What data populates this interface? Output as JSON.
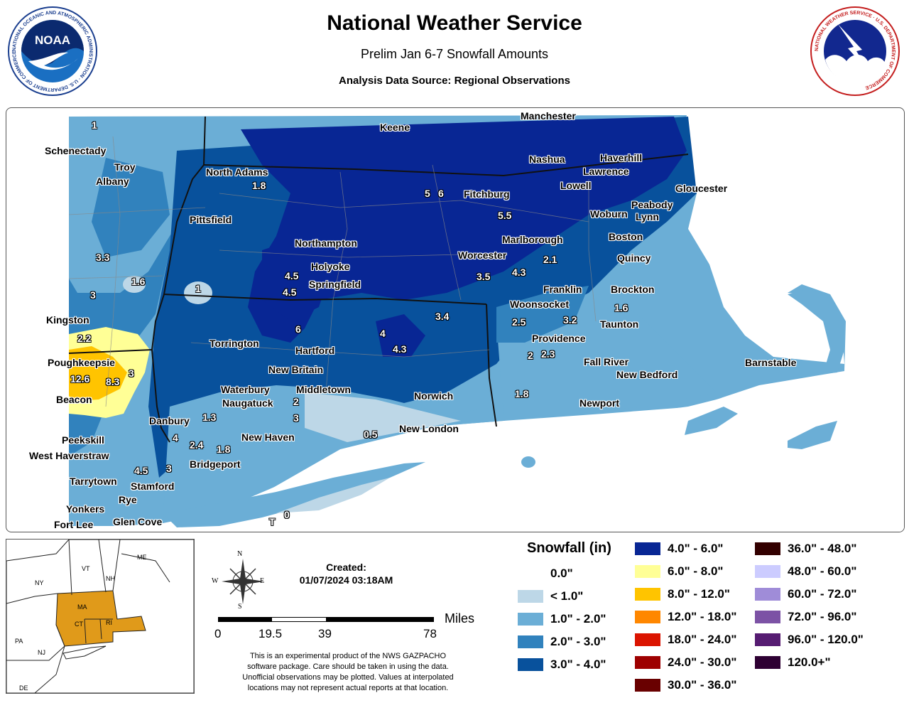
{
  "header": {
    "title": "National Weather Service",
    "subtitle": "Prelim Jan 6-7 Snowfall Amounts",
    "source": "Analysis Data Source: Regional Observations"
  },
  "logos": {
    "noaa": {
      "text": "NOAA",
      "ring_text": "NATIONAL OCEANIC AND ATMOSPHERIC ADMINISTRATION · U.S. DEPARTMENT OF COMMERCE"
    },
    "nws": {
      "ring_text": "NATIONAL WEATHER SERVICE · U.S. DEPARTMENT OF COMMERCE"
    }
  },
  "map": {
    "cities": [
      {
        "name": "Schenectady"
      },
      {
        "name": "Troy"
      },
      {
        "name": "Albany"
      },
      {
        "name": "North Adams"
      },
      {
        "name": "Pittsfield"
      },
      {
        "name": "Keene"
      },
      {
        "name": "Manchester"
      },
      {
        "name": "Nashua"
      },
      {
        "name": "Haverhill"
      },
      {
        "name": "Lawrence"
      },
      {
        "name": "Lowell"
      },
      {
        "name": "Gloucester"
      },
      {
        "name": "Fitchburg"
      },
      {
        "name": "Peabody"
      },
      {
        "name": "Woburn"
      },
      {
        "name": "Lynn"
      },
      {
        "name": "Marlborough"
      },
      {
        "name": "Boston"
      },
      {
        "name": "Quincy"
      },
      {
        "name": "Northampton"
      },
      {
        "name": "Holyoke"
      },
      {
        "name": "Springfield"
      },
      {
        "name": "Worcester"
      },
      {
        "name": "Franklin"
      },
      {
        "name": "Brockton"
      },
      {
        "name": "Woonsocket"
      },
      {
        "name": "Taunton"
      },
      {
        "name": "Kingston"
      },
      {
        "name": "Providence"
      },
      {
        "name": "Torrington"
      },
      {
        "name": "Hartford"
      },
      {
        "name": "Poughkeepsie"
      },
      {
        "name": "New Britain"
      },
      {
        "name": "Fall River"
      },
      {
        "name": "New Bedford"
      },
      {
        "name": "Barnstable"
      },
      {
        "name": "Waterbury"
      },
      {
        "name": "Middletown"
      },
      {
        "name": "Naugatuck"
      },
      {
        "name": "Beacon"
      },
      {
        "name": "Norwich"
      },
      {
        "name": "Newport"
      },
      {
        "name": "Danbury"
      },
      {
        "name": "New London"
      },
      {
        "name": "New Haven"
      },
      {
        "name": "Peekskill"
      },
      {
        "name": "West Haverstraw"
      },
      {
        "name": "Bridgeport"
      },
      {
        "name": "Tarrytown"
      },
      {
        "name": "Stamford"
      },
      {
        "name": "Rye"
      },
      {
        "name": "Yonkers"
      },
      {
        "name": "Fort Lee"
      },
      {
        "name": "Glen Cove"
      }
    ],
    "observations": [
      {
        "value": "1"
      },
      {
        "value": "1.8"
      },
      {
        "value": "5"
      },
      {
        "value": "6"
      },
      {
        "value": "5.5"
      },
      {
        "value": "3.3"
      },
      {
        "value": "1.6"
      },
      {
        "value": "3"
      },
      {
        "value": "1"
      },
      {
        "value": "4.5"
      },
      {
        "value": "4.5"
      },
      {
        "value": "2.1"
      },
      {
        "value": "3.5"
      },
      {
        "value": "4.3"
      },
      {
        "value": "3.4"
      },
      {
        "value": "1.6"
      },
      {
        "value": "3.2"
      },
      {
        "value": "2.5"
      },
      {
        "value": "2.2"
      },
      {
        "value": "6"
      },
      {
        "value": "4"
      },
      {
        "value": "4.3"
      },
      {
        "value": "2"
      },
      {
        "value": "2.3"
      },
      {
        "value": "12.6"
      },
      {
        "value": "8.3"
      },
      {
        "value": "3"
      },
      {
        "value": "2"
      },
      {
        "value": "1.8"
      },
      {
        "value": "3"
      },
      {
        "value": "1.3"
      },
      {
        "value": "0.5"
      },
      {
        "value": "4"
      },
      {
        "value": "2.4"
      },
      {
        "value": "1.8"
      },
      {
        "value": "4.5"
      },
      {
        "value": "3"
      },
      {
        "value": "0"
      },
      {
        "value": "T"
      }
    ]
  },
  "inset": {
    "labels": [
      "NY",
      "VT",
      "NH",
      "ME",
      "MA",
      "CT",
      "RI",
      "PA",
      "NJ",
      "DE"
    ],
    "highlight_color": "#e09a1a"
  },
  "compass": {
    "n": "N",
    "s": "S",
    "e": "E",
    "w": "W"
  },
  "created": {
    "label": "Created:",
    "value": "01/07/2024 03:18AM"
  },
  "scale": {
    "unit": "Miles",
    "ticks": [
      "0",
      "19.5",
      "39",
      "78"
    ]
  },
  "disclaimer": [
    "This is an experimental product of the NWS GAZPACHO",
    "software package. Care should be taken in using the data.",
    "Unofficial observations may be plotted. Values at interpolated",
    "locations may not represent actual reports at that location."
  ],
  "legend": {
    "title": "Snowfall (in)",
    "items": [
      {
        "label": "0.0\"",
        "color": "#ffffff"
      },
      {
        "label": "< 1.0\"",
        "color": "#bdd7e7"
      },
      {
        "label": "1.0\" - 2.0\"",
        "color": "#6baed6"
      },
      {
        "label": "2.0\" - 3.0\"",
        "color": "#3182bd"
      },
      {
        "label": "3.0\" - 4.0\"",
        "color": "#08519c"
      },
      {
        "label": "4.0\" - 6.0\"",
        "color": "#082694"
      },
      {
        "label": "6.0\" - 8.0\"",
        "color": "#ffff96"
      },
      {
        "label": "8.0\" - 12.0\"",
        "color": "#ffc400"
      },
      {
        "label": "12.0\" - 18.0\"",
        "color": "#ff8700"
      },
      {
        "label": "18.0\" - 24.0\"",
        "color": "#db1400"
      },
      {
        "label": "24.0\" - 30.0\"",
        "color": "#9e0000"
      },
      {
        "label": "30.0\" - 36.0\"",
        "color": "#690000"
      },
      {
        "label": "36.0\" - 48.0\"",
        "color": "#330000"
      },
      {
        "label": "48.0\" - 60.0\"",
        "color": "#ccccff"
      },
      {
        "label": "60.0\" - 72.0\"",
        "color": "#9f8cd8"
      },
      {
        "label": "72.0\" - 96.0\"",
        "color": "#7c52a5"
      },
      {
        "label": "96.0\" - 120.0\"",
        "color": "#561c72"
      },
      {
        "label": "120.0+\"",
        "color": "#2e0033"
      }
    ]
  }
}
